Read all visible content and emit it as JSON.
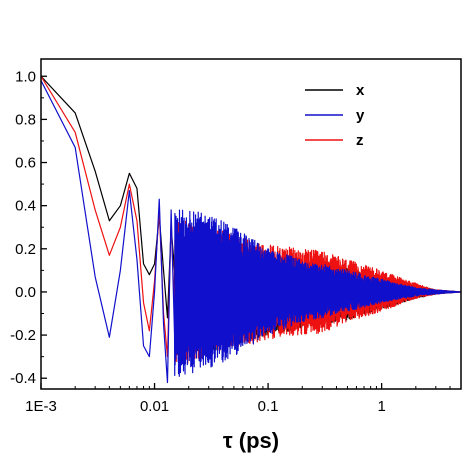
{
  "chart_data": {
    "type": "line",
    "xlabel": "τ (ps)",
    "ylabel": "",
    "x_scale": "log",
    "xlim": [
      0.001,
      5
    ],
    "ylim": [
      -0.45,
      1.08
    ],
    "x_ticks": [
      {
        "value": 0.001,
        "label": "1E-3"
      },
      {
        "value": 0.01,
        "label": "0.01"
      },
      {
        "value": 0.1,
        "label": "0.1"
      },
      {
        "value": 1,
        "label": "1"
      }
    ],
    "y_ticks": [
      {
        "value": -0.4,
        "label": "-0.4"
      },
      {
        "value": -0.2,
        "label": "-0.2"
      },
      {
        "value": 0.0,
        "label": "0.0"
      },
      {
        "value": 0.2,
        "label": "0.2"
      },
      {
        "value": 0.4,
        "label": "0.4"
      },
      {
        "value": 0.6,
        "label": "0.6"
      },
      {
        "value": 0.8,
        "label": "0.8"
      },
      {
        "value": 1.0,
        "label": "1.0"
      }
    ],
    "grid": false,
    "legend_position": "top-right",
    "series": [
      {
        "name": "x",
        "color": "#000000",
        "x": [
          0.001,
          0.002,
          0.003,
          0.004,
          0.005,
          0.006,
          0.007,
          0.008,
          0.009,
          0.01,
          0.011,
          0.012,
          0.013,
          0.014,
          0.015
        ],
        "y": [
          1.0,
          0.83,
          0.56,
          0.33,
          0.4,
          0.55,
          0.48,
          0.13,
          0.08,
          0.13,
          0.35,
          0.1,
          -0.12,
          0.3,
          0.1
        ],
        "envelope": {
          "x": [
            0.015,
            0.02,
            0.03,
            0.05,
            0.1,
            0.2,
            0.3,
            0.5,
            1,
            2,
            3,
            5
          ],
          "upper": [
            0.25,
            0.28,
            0.27,
            0.24,
            0.17,
            0.14,
            0.13,
            0.11,
            0.07,
            0.03,
            0.01,
            0.0
          ],
          "lower": [
            -0.3,
            -0.3,
            -0.28,
            -0.25,
            -0.2,
            -0.17,
            -0.15,
            -0.13,
            -0.08,
            -0.03,
            -0.01,
            0.0
          ]
        }
      },
      {
        "name": "y",
        "color": "#1010cc",
        "x": [
          0.001,
          0.002,
          0.003,
          0.004,
          0.005,
          0.006,
          0.007,
          0.008,
          0.009,
          0.01,
          0.011,
          0.012,
          0.013,
          0.014,
          0.015
        ],
        "y": [
          0.98,
          0.67,
          0.07,
          -0.21,
          0.1,
          0.47,
          0.15,
          -0.25,
          -0.3,
          0.0,
          0.43,
          -0.15,
          -0.42,
          0.38,
          -0.2
        ],
        "envelope": {
          "x": [
            0.015,
            0.02,
            0.03,
            0.05,
            0.1,
            0.2,
            0.3,
            0.5,
            1,
            2,
            3,
            5
          ],
          "upper": [
            0.4,
            0.38,
            0.36,
            0.3,
            0.2,
            0.15,
            0.13,
            0.1,
            0.06,
            0.02,
            0.01,
            0.0
          ],
          "lower": [
            -0.4,
            -0.38,
            -0.36,
            -0.3,
            -0.2,
            -0.14,
            -0.12,
            -0.09,
            -0.05,
            -0.02,
            -0.01,
            0.0
          ]
        }
      },
      {
        "name": "z",
        "color": "#ee1111",
        "x": [
          0.001,
          0.002,
          0.003,
          0.004,
          0.005,
          0.006,
          0.007,
          0.008,
          0.009,
          0.01,
          0.011,
          0.012,
          0.013,
          0.014,
          0.015
        ],
        "y": [
          1.0,
          0.74,
          0.38,
          0.17,
          0.3,
          0.5,
          0.33,
          -0.05,
          -0.18,
          0.05,
          0.38,
          -0.1,
          -0.3,
          0.33,
          -0.1
        ],
        "envelope": {
          "x": [
            0.015,
            0.02,
            0.03,
            0.05,
            0.1,
            0.2,
            0.3,
            0.5,
            1,
            2,
            3,
            5
          ],
          "upper": [
            0.35,
            0.33,
            0.3,
            0.27,
            0.22,
            0.2,
            0.19,
            0.15,
            0.1,
            0.04,
            0.01,
            0.0
          ],
          "lower": [
            -0.35,
            -0.33,
            -0.3,
            -0.26,
            -0.22,
            -0.2,
            -0.19,
            -0.14,
            -0.09,
            -0.03,
            -0.01,
            0.0
          ]
        }
      }
    ]
  }
}
